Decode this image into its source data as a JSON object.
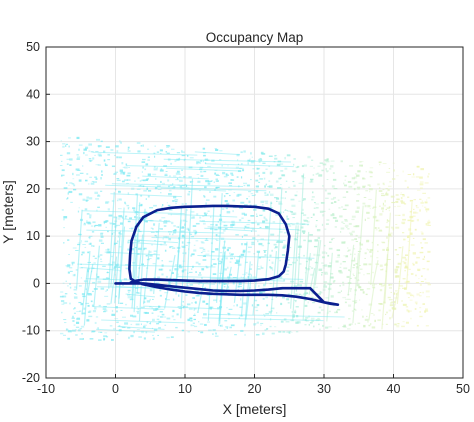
{
  "chart_data": {
    "type": "line",
    "title": "Occupancy Map",
    "xlabel": "X [meters]",
    "ylabel": "Y [meters]",
    "xlim": [
      -10,
      50
    ],
    "ylim": [
      -20,
      50
    ],
    "xticks": [
      -10,
      0,
      10,
      20,
      30,
      40,
      50
    ],
    "yticks": [
      -20,
      -10,
      0,
      10,
      20,
      30,
      40,
      50
    ],
    "grid": true,
    "colors": {
      "trajectory": "#0b1f8f",
      "occupancy_cyan": "#7fe9f2",
      "occupancy_yellow": "#f3f3b0",
      "grid": "#e6e6e6",
      "axes": "#262626"
    },
    "series": [
      {
        "x": [
          0,
          2,
          4,
          6,
          8,
          10,
          12,
          14,
          16,
          18,
          20,
          22,
          24,
          26,
          28,
          30,
          32,
          31,
          30,
          28,
          26,
          24,
          22,
          20,
          18,
          16,
          14,
          12,
          10,
          8,
          6,
          4,
          3,
          2.2,
          2,
          2.1,
          2.3,
          3,
          4,
          6,
          8,
          10,
          12,
          14,
          16,
          18,
          20,
          22,
          23.5,
          24.5,
          25,
          24.8,
          24.5,
          24.2,
          23.5,
          22,
          20,
          18,
          16,
          14,
          12,
          10,
          8,
          6,
          4,
          3,
          2.2
        ],
        "y": [
          0,
          0,
          0,
          -0.3,
          -0.6,
          -0.9,
          -1.2,
          -1.5,
          -1.6,
          -1.6,
          -1.5,
          -1.3,
          -1.0,
          -1.0,
          -1.0,
          -4.0,
          -4.5,
          -4.3,
          -4.0,
          -3.3,
          -2.8,
          -2.5,
          -2.4,
          -2.4,
          -2.4,
          -2.3,
          -2.2,
          -2.0,
          -1.7,
          -1.3,
          -0.8,
          -0.2,
          0.3,
          1.0,
          3.0,
          6.0,
          9.0,
          12.0,
          14.0,
          15.5,
          16.0,
          16.2,
          16.3,
          16.4,
          16.4,
          16.3,
          16.2,
          15.8,
          14.8,
          12.5,
          10.0,
          7.0,
          4.0,
          2.5,
          1.5,
          0.9,
          0.6,
          0.5,
          0.5,
          0.5,
          0.5,
          0.6,
          0.7,
          0.8,
          0.8,
          0.6,
          0.2
        ]
      }
    ]
  }
}
